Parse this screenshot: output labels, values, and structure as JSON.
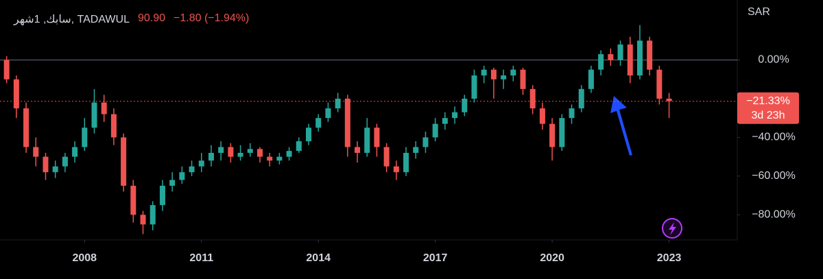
{
  "chart_data": {
    "type": "candlestick",
    "title": "سابك, 1شهر, TADAWUL",
    "price": "90.90",
    "change": "−1.80 (−1.94%)",
    "currency": "SAR",
    "up_color": "#26a69a",
    "down_color": "#ef5350",
    "baseline": 0,
    "last_value": {
      "value": -21.33,
      "label": "−21.33%"
    },
    "countdown": "3d 23h",
    "x": [
      2006.0,
      2006.25,
      2006.5,
      2006.75,
      2007.0,
      2007.25,
      2007.5,
      2007.75,
      2008.0,
      2008.25,
      2008.5,
      2008.75,
      2009.0,
      2009.25,
      2009.5,
      2009.75,
      2010.0,
      2010.25,
      2010.5,
      2010.75,
      2011.0,
      2011.25,
      2011.5,
      2011.75,
      2012.0,
      2012.25,
      2012.5,
      2012.75,
      2013.0,
      2013.25,
      2013.5,
      2013.75,
      2014.0,
      2014.25,
      2014.5,
      2014.75,
      2015.0,
      2015.25,
      2015.5,
      2015.75,
      2016.0,
      2016.25,
      2016.5,
      2016.75,
      2017.0,
      2017.25,
      2017.5,
      2017.75,
      2018.0,
      2018.25,
      2018.5,
      2018.75,
      2019.0,
      2019.25,
      2019.5,
      2019.75,
      2020.0,
      2020.25,
      2020.5,
      2020.75,
      2021.0,
      2021.25,
      2021.5,
      2021.75,
      2022.0,
      2022.25,
      2022.5,
      2022.75,
      2023.0
    ],
    "open": [
      0,
      -10,
      -25,
      -45,
      -50,
      -58,
      -55,
      -50,
      -45,
      -35,
      -22,
      -28,
      -40,
      -65,
      -80,
      -85,
      -75,
      -65,
      -62,
      -58,
      -55,
      -52,
      -48,
      -45,
      -50,
      -48,
      -46,
      -50,
      -52,
      -50,
      -47,
      -42,
      -35,
      -30,
      -25,
      -20,
      -45,
      -48,
      -35,
      -45,
      -55,
      -58,
      -48,
      -45,
      -40,
      -33,
      -30,
      -27,
      -20,
      -8,
      -5,
      -10,
      -8,
      -5,
      -15,
      -25,
      -33,
      -45,
      -30,
      -25,
      -15,
      -5,
      3,
      0,
      8,
      -8,
      10,
      -5,
      -20
    ],
    "close": [
      -10,
      -25,
      -45,
      -50,
      -58,
      -55,
      -50,
      -45,
      -35,
      -22,
      -28,
      -40,
      -65,
      -80,
      -85,
      -75,
      -65,
      -62,
      -58,
      -55,
      -52,
      -48,
      -45,
      -50,
      -48,
      -46,
      -50,
      -52,
      -50,
      -47,
      -42,
      -35,
      -30,
      -25,
      -20,
      -45,
      -48,
      -35,
      -45,
      -55,
      -58,
      -48,
      -45,
      -40,
      -33,
      -30,
      -27,
      -20,
      -8,
      -5,
      -10,
      -8,
      -5,
      -15,
      -25,
      -33,
      -45,
      -30,
      -25,
      -15,
      -5,
      3,
      0,
      8,
      -8,
      10,
      -5,
      -20,
      -21.33
    ],
    "high": [
      2,
      -8,
      -22,
      -40,
      -48,
      -52,
      -48,
      -42,
      -30,
      -15,
      -18,
      -25,
      -38,
      -62,
      -78,
      -73,
      -62,
      -58,
      -55,
      -52,
      -48,
      -44,
      -42,
      -43,
      -44,
      -43,
      -45,
      -48,
      -48,
      -45,
      -40,
      -33,
      -28,
      -22,
      -17,
      -18,
      -42,
      -30,
      -33,
      -43,
      -52,
      -45,
      -42,
      -37,
      -30,
      -27,
      -24,
      -18,
      -5,
      -3,
      -4,
      -5,
      -3,
      -4,
      -13,
      -22,
      -30,
      -28,
      -23,
      -13,
      -3,
      5,
      6,
      10,
      12,
      18,
      12,
      -3,
      -17
    ],
    "low": [
      -12,
      -30,
      -48,
      -55,
      -62,
      -61,
      -58,
      -53,
      -47,
      -38,
      -32,
      -44,
      -68,
      -84,
      -90,
      -88,
      -78,
      -68,
      -64,
      -60,
      -58,
      -55,
      -52,
      -53,
      -52,
      -50,
      -53,
      -55,
      -54,
      -52,
      -48,
      -44,
      -37,
      -32,
      -27,
      -50,
      -53,
      -50,
      -50,
      -58,
      -62,
      -60,
      -51,
      -48,
      -42,
      -36,
      -33,
      -29,
      -22,
      -12,
      -20,
      -15,
      -11,
      -18,
      -28,
      -36,
      -52,
      -47,
      -33,
      -27,
      -17,
      -8,
      -3,
      -3,
      -12,
      -10,
      -8,
      -23,
      -30
    ],
    "xlim": [
      2005.83,
      2024.75
    ],
    "xticks": [
      2008,
      2011,
      2014,
      2017,
      2020,
      2023
    ],
    "ylim": [
      -93,
      31
    ],
    "yticks": [
      {
        "value": 0,
        "label": "0.00%"
      },
      {
        "value": -40,
        "label": "−40.00%"
      },
      {
        "value": -60,
        "label": "−60.00%"
      },
      {
        "value": -80,
        "label": "−80.00%"
      }
    ]
  }
}
